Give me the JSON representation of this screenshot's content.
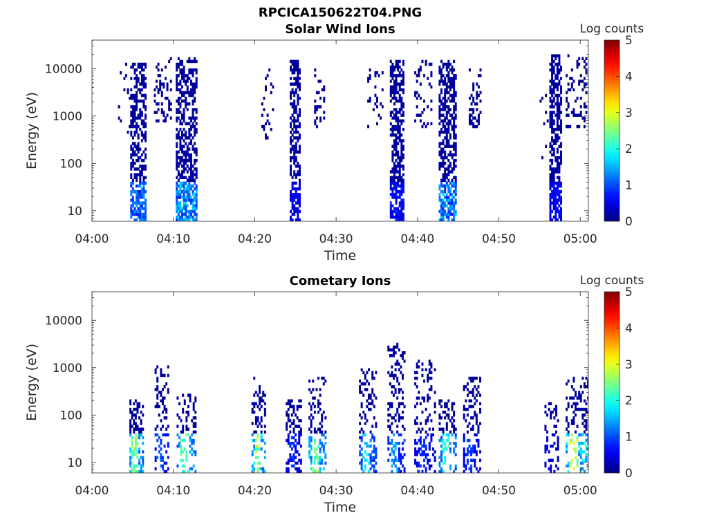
{
  "figure": {
    "filename": "RPCICA150622T04.PNG"
  },
  "chart_data": [
    {
      "type": "heatmap",
      "title": "Solar Wind Ions",
      "xlabel": "Time",
      "ylabel": "Energy (eV)",
      "y_scale": "log",
      "ylim": [
        6,
        40000
      ],
      "xlim": [
        "04:00",
        "05:01"
      ],
      "x_ticks": [
        "04:00",
        "04:10",
        "04:20",
        "04:30",
        "04:40",
        "04:50",
        "05:00"
      ],
      "y_ticks": [
        10,
        100,
        1000,
        10000
      ],
      "y_tick_labels": [
        "10",
        "100",
        "1000",
        "10000"
      ],
      "colorbar": {
        "label": "Log counts",
        "range": [
          0,
          5
        ],
        "ticks": [
          "0",
          "1",
          "2",
          "3",
          "4",
          "5"
        ],
        "colormap": "jet"
      },
      "grid": false,
      "bursts": [
        {
          "t_start": "04:04.7",
          "t_end": "04:06.5",
          "e_min": 6,
          "e_max": 12000,
          "density": 0.55,
          "level_low": 1.3,
          "level_high": 0.2
        },
        {
          "t_start": "04:03.2",
          "t_end": "04:04.6",
          "e_min": 300,
          "e_max": 12000,
          "density": 0.06,
          "level_low": 0.1,
          "level_high": 0.1
        },
        {
          "t_start": "04:07.6",
          "t_end": "04:09.6",
          "e_min": 700,
          "e_max": 16000,
          "density": 0.22,
          "level_low": 0.2,
          "level_high": 0.15
        },
        {
          "t_start": "04:10.3",
          "t_end": "04:12.8",
          "e_min": 6,
          "e_max": 16000,
          "density": 0.55,
          "level_low": 1.6,
          "level_high": 0.2
        },
        {
          "t_start": "04:20.8",
          "t_end": "04:22.2",
          "e_min": 300,
          "e_max": 10000,
          "density": 0.16,
          "level_low": 0.15,
          "level_high": 0.15
        },
        {
          "t_start": "04:24.3",
          "t_end": "04:25.6",
          "e_min": 6,
          "e_max": 15000,
          "density": 0.55,
          "level_low": 0.6,
          "level_high": 0.2
        },
        {
          "t_start": "04:27.3",
          "t_end": "04:28.6",
          "e_min": 500,
          "e_max": 10000,
          "density": 0.22,
          "level_low": 0.2,
          "level_high": 0.15
        },
        {
          "t_start": "04:33.6",
          "t_end": "04:35.6",
          "e_min": 500,
          "e_max": 10000,
          "density": 0.12,
          "level_low": 0.2,
          "level_high": 0.15
        },
        {
          "t_start": "04:36.6",
          "t_end": "04:38.3",
          "e_min": 6,
          "e_max": 15000,
          "density": 0.6,
          "level_low": 0.8,
          "level_high": 0.2
        },
        {
          "t_start": "04:39.6",
          "t_end": "04:41.6",
          "e_min": 500,
          "e_max": 15000,
          "density": 0.2,
          "level_low": 0.2,
          "level_high": 0.15
        },
        {
          "t_start": "04:42.6",
          "t_end": "04:44.6",
          "e_min": 6,
          "e_max": 15000,
          "density": 0.55,
          "level_low": 1.5,
          "level_high": 0.2
        },
        {
          "t_start": "04:46.3",
          "t_end": "04:47.8",
          "e_min": 500,
          "e_max": 10000,
          "density": 0.3,
          "level_low": 0.2,
          "level_high": 0.15
        },
        {
          "t_start": "04:55.0",
          "t_end": "04:56.0",
          "e_min": 80,
          "e_max": 3000,
          "density": 0.05,
          "level_low": 0.1,
          "level_high": 0.1
        },
        {
          "t_start": "04:56.2",
          "t_end": "04:57.6",
          "e_min": 6,
          "e_max": 18000,
          "density": 0.6,
          "level_low": 0.7,
          "level_high": 0.2
        },
        {
          "t_start": "04:58.2",
          "t_end": "05:00.8",
          "e_min": 500,
          "e_max": 20000,
          "density": 0.25,
          "level_low": 0.2,
          "level_high": 0.15
        }
      ]
    },
    {
      "type": "heatmap",
      "title": "Cometary Ions",
      "xlabel": "Time",
      "ylabel": "Energy (eV)",
      "y_scale": "log",
      "ylim": [
        6,
        40000
      ],
      "xlim": [
        "04:00",
        "05:01"
      ],
      "x_ticks": [
        "04:00",
        "04:10",
        "04:20",
        "04:30",
        "04:40",
        "04:50",
        "05:00"
      ],
      "y_ticks": [
        10,
        100,
        1000,
        10000
      ],
      "y_tick_labels": [
        "10",
        "100",
        "1000",
        "10000"
      ],
      "colorbar": {
        "label": "Log counts",
        "range": [
          0,
          5
        ],
        "ticks": [
          "0",
          "1",
          "2",
          "3",
          "4",
          "5"
        ],
        "colormap": "jet"
      },
      "grid": false,
      "bursts": [
        {
          "t_start": "04:04.6",
          "t_end": "04:06.2",
          "e_min": 6,
          "e_max": 200,
          "density": 0.35,
          "core_level": 2.8,
          "level_low": 2.8,
          "level_high": 0.2
        },
        {
          "t_start": "04:07.7",
          "t_end": "04:09.3",
          "e_min": 6,
          "e_max": 1100,
          "density": 0.25,
          "core_level": 1.2,
          "level_low": 1.2,
          "level_high": 0.2
        },
        {
          "t_start": "04:10.4",
          "t_end": "04:12.8",
          "e_min": 6,
          "e_max": 300,
          "density": 0.3,
          "core_level": 2.5,
          "level_low": 2.5,
          "level_high": 0.2
        },
        {
          "t_start": "04:19.6",
          "t_end": "04:21.3",
          "e_min": 6,
          "e_max": 600,
          "density": 0.3,
          "core_level": 3.0,
          "level_low": 3.0,
          "level_high": 0.2
        },
        {
          "t_start": "04:23.8",
          "t_end": "04:25.6",
          "e_min": 6,
          "e_max": 200,
          "density": 0.3,
          "core_level": 1.0,
          "level_low": 1.0,
          "level_high": 0.2
        },
        {
          "t_start": "04:26.6",
          "t_end": "04:28.6",
          "e_min": 6,
          "e_max": 600,
          "density": 0.3,
          "core_level": 2.8,
          "level_low": 2.8,
          "level_high": 0.2
        },
        {
          "t_start": "04:32.8",
          "t_end": "04:34.8",
          "e_min": 6,
          "e_max": 900,
          "density": 0.3,
          "core_level": 2.0,
          "level_low": 2.0,
          "level_high": 0.2
        },
        {
          "t_start": "04:36.3",
          "t_end": "04:38.3",
          "e_min": 6,
          "e_max": 3000,
          "density": 0.25,
          "core_level": 1.6,
          "level_low": 1.6,
          "level_high": 0.2
        },
        {
          "t_start": "04:39.6",
          "t_end": "04:42.2",
          "e_min": 6,
          "e_max": 1300,
          "density": 0.25,
          "core_level": 0.9,
          "level_low": 0.9,
          "level_high": 0.2
        },
        {
          "t_start": "04:42.6",
          "t_end": "04:44.8",
          "e_min": 6,
          "e_max": 200,
          "density": 0.3,
          "core_level": 2.3,
          "level_low": 2.3,
          "level_high": 0.2
        },
        {
          "t_start": "04:45.6",
          "t_end": "04:47.8",
          "e_min": 6,
          "e_max": 600,
          "density": 0.3,
          "core_level": 1.0,
          "level_low": 1.0,
          "level_high": 0.2
        },
        {
          "t_start": "04:55.6",
          "t_end": "04:57.2",
          "e_min": 6,
          "e_max": 200,
          "density": 0.2,
          "core_level": 0.6,
          "level_low": 0.6,
          "level_high": 0.2
        },
        {
          "t_start": "04:58.2",
          "t_end": "05:00.9",
          "e_min": 6,
          "e_max": 600,
          "density": 0.3,
          "core_level": 3.2,
          "level_low": 3.2,
          "level_high": 0.2
        }
      ]
    }
  ]
}
